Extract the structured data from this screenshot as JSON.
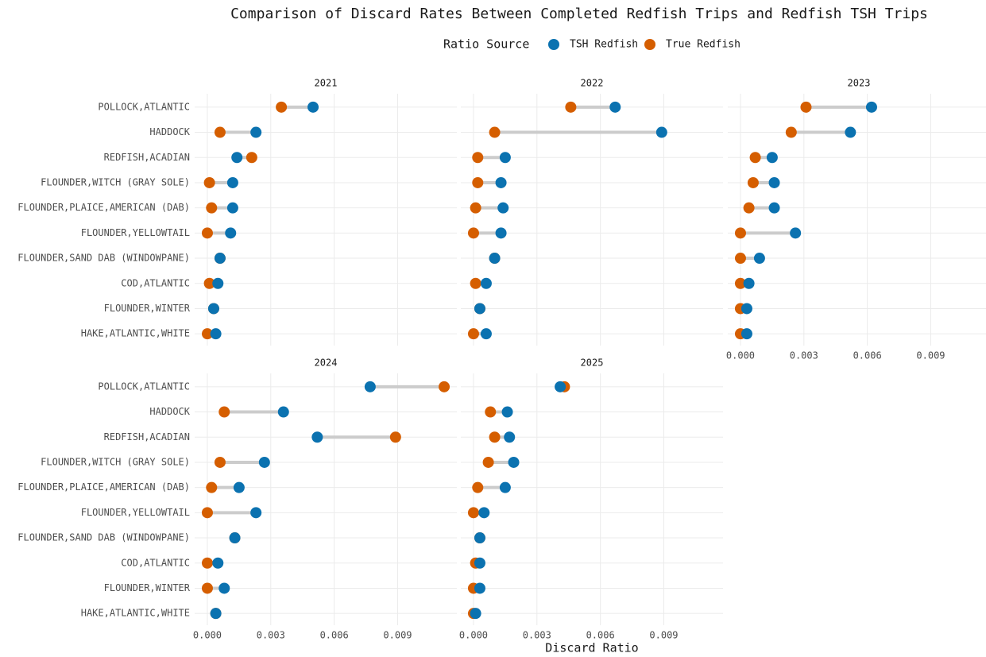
{
  "chart_data": {
    "type": "dumbbell",
    "title": "Comparison of Discard Rates Between Completed Redfish Trips and Redfish TSH Trips",
    "legend_title": "Ratio Source",
    "x_label": "Discard Ratio",
    "categories": [
      "POLLOCK,ATLANTIC",
      "HADDOCK",
      "REDFISH,ACADIAN",
      "FLOUNDER,WITCH (GRAY SOLE)",
      "FLOUNDER,PLAICE,AMERICAN (DAB)",
      "FLOUNDER,YELLOWTAIL",
      "FLOUNDER,SAND DAB (WINDOWPANE)",
      "COD,ATLANTIC",
      "FLOUNDER,WINTER",
      "HAKE,ATLANTIC,WHITE"
    ],
    "series": [
      {
        "name": "TSH Redfish",
        "color": "#0b72b0"
      },
      {
        "name": "True Redfish",
        "color": "#d55e00"
      }
    ],
    "xlim": [
      -0.0006,
      0.0118
    ],
    "xticks": [
      {
        "value": 0,
        "label": "0.000"
      },
      {
        "value": 0.003,
        "label": "0.003"
      },
      {
        "value": 0.006,
        "label": "0.006"
      },
      {
        "value": 0.009,
        "label": "0.009"
      }
    ],
    "grid": true,
    "panels": [
      {
        "title": "2021",
        "series": [
          {
            "values": [
              0.005,
              0.0023,
              0.0014,
              0.0012,
              0.0012,
              0.0011,
              0.0006,
              0.0005,
              0.0003,
              0.0004
            ]
          },
          {
            "values": [
              0.0035,
              0.0006,
              0.0021,
              0.0001,
              0.0002,
              0.0,
              0.0006,
              0.0001,
              0.0003,
              0.0
            ]
          }
        ]
      },
      {
        "title": "2022",
        "series": [
          {
            "values": [
              0.0067,
              0.0089,
              0.0015,
              0.0013,
              0.0014,
              0.0013,
              0.001,
              0.0006,
              0.0003,
              0.0006
            ]
          },
          {
            "values": [
              0.0046,
              0.001,
              0.0002,
              0.0002,
              0.0001,
              0.0,
              0.001,
              0.0001,
              0.0003,
              0.0
            ]
          }
        ]
      },
      {
        "title": "2023",
        "series": [
          {
            "values": [
              0.0062,
              0.0052,
              0.0015,
              0.0016,
              0.0016,
              0.0026,
              0.0009,
              0.0004,
              0.0003,
              0.0003
            ]
          },
          {
            "values": [
              0.0031,
              0.0024,
              0.0007,
              0.0006,
              0.0004,
              0.0,
              0.0,
              0.0,
              0.0,
              0.0
            ]
          }
        ]
      },
      {
        "title": "2024",
        "series": [
          {
            "values": [
              0.0077,
              0.0036,
              0.0052,
              0.0027,
              0.0015,
              0.0023,
              0.0013,
              0.0005,
              0.0008,
              0.0004
            ]
          },
          {
            "values": [
              0.0112,
              0.0008,
              0.0089,
              0.0006,
              0.0002,
              0.0,
              0.0013,
              0.0,
              0.0,
              0.0004
            ]
          }
        ]
      },
      {
        "title": "2025",
        "series": [
          {
            "values": [
              0.0041,
              0.0016,
              0.0017,
              0.0019,
              0.0015,
              0.0005,
              0.0003,
              0.0003,
              0.0003,
              0.0001
            ]
          },
          {
            "values": [
              0.0043,
              0.0008,
              0.001,
              0.0007,
              0.0002,
              0.0,
              0.0003,
              0.0001,
              0.0,
              0.0
            ]
          }
        ]
      }
    ]
  }
}
